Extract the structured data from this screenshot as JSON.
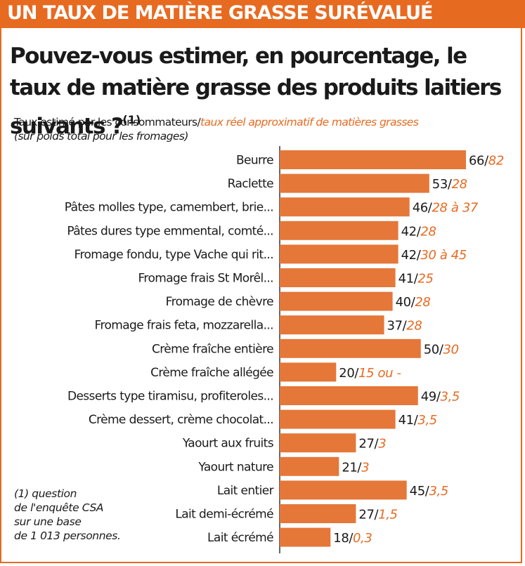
{
  "header": {
    "title": "UN TAUX DE MATIÈRE GRASSE SURÉVALUÉ",
    "question": "Pouvez-vous estimer, en pourcentage, le taux de matière grasse des produits laitiers suivants ?",
    "question_note": "(1)"
  },
  "legend": {
    "estimated_label": "Taux estimé par les consommateurs/",
    "real_label": "taux réel approximatif de matières grasses",
    "sub_label": "(sur poids total pour les fromages)"
  },
  "footnote": {
    "lines": [
      "(1) question",
      "de l'enquête CSA",
      "sur une base",
      "de 1 013 personnes."
    ]
  },
  "colors": {
    "accent": "#e76a21",
    "bar": "#e57739",
    "text": "#1a1a1a"
  },
  "chart_data": {
    "type": "bar",
    "orientation": "horizontal",
    "categories": [
      "Beurre",
      "Raclette",
      "Pâtes molles type, camembert, brie...",
      "Pâtes dures type emmental, comté...",
      "Fromage fondu, type Vache qui rit...",
      "Fromage frais St Morêl...",
      "Fromage de chèvre",
      "Fromage frais feta, mozzarella...",
      "Crème fraîche entière",
      "Crème fraîche allégée",
      "Desserts type tiramisu, profiteroles...",
      "Crème dessert, crème chocolat...",
      "Yaourt aux fruits",
      "Yaourt nature",
      "Lait entier",
      "Lait demi-écrémé",
      "Lait écrémé"
    ],
    "series": [
      {
        "name": "Taux estimé par les consommateurs",
        "values": [
          66,
          53,
          46,
          42,
          42,
          41,
          40,
          37,
          50,
          20,
          49,
          41,
          27,
          21,
          45,
          27,
          18
        ]
      },
      {
        "name": "taux réel approximatif de matières grasses",
        "values": [
          "82",
          "28",
          "28 à 37",
          "28",
          "30 à 45",
          "25",
          "28",
          "28",
          "30",
          "15 ou -",
          "3,5",
          "3,5",
          "3",
          "3",
          "3,5",
          "1,5",
          "0,3"
        ]
      }
    ],
    "xlim": [
      0,
      66
    ]
  }
}
